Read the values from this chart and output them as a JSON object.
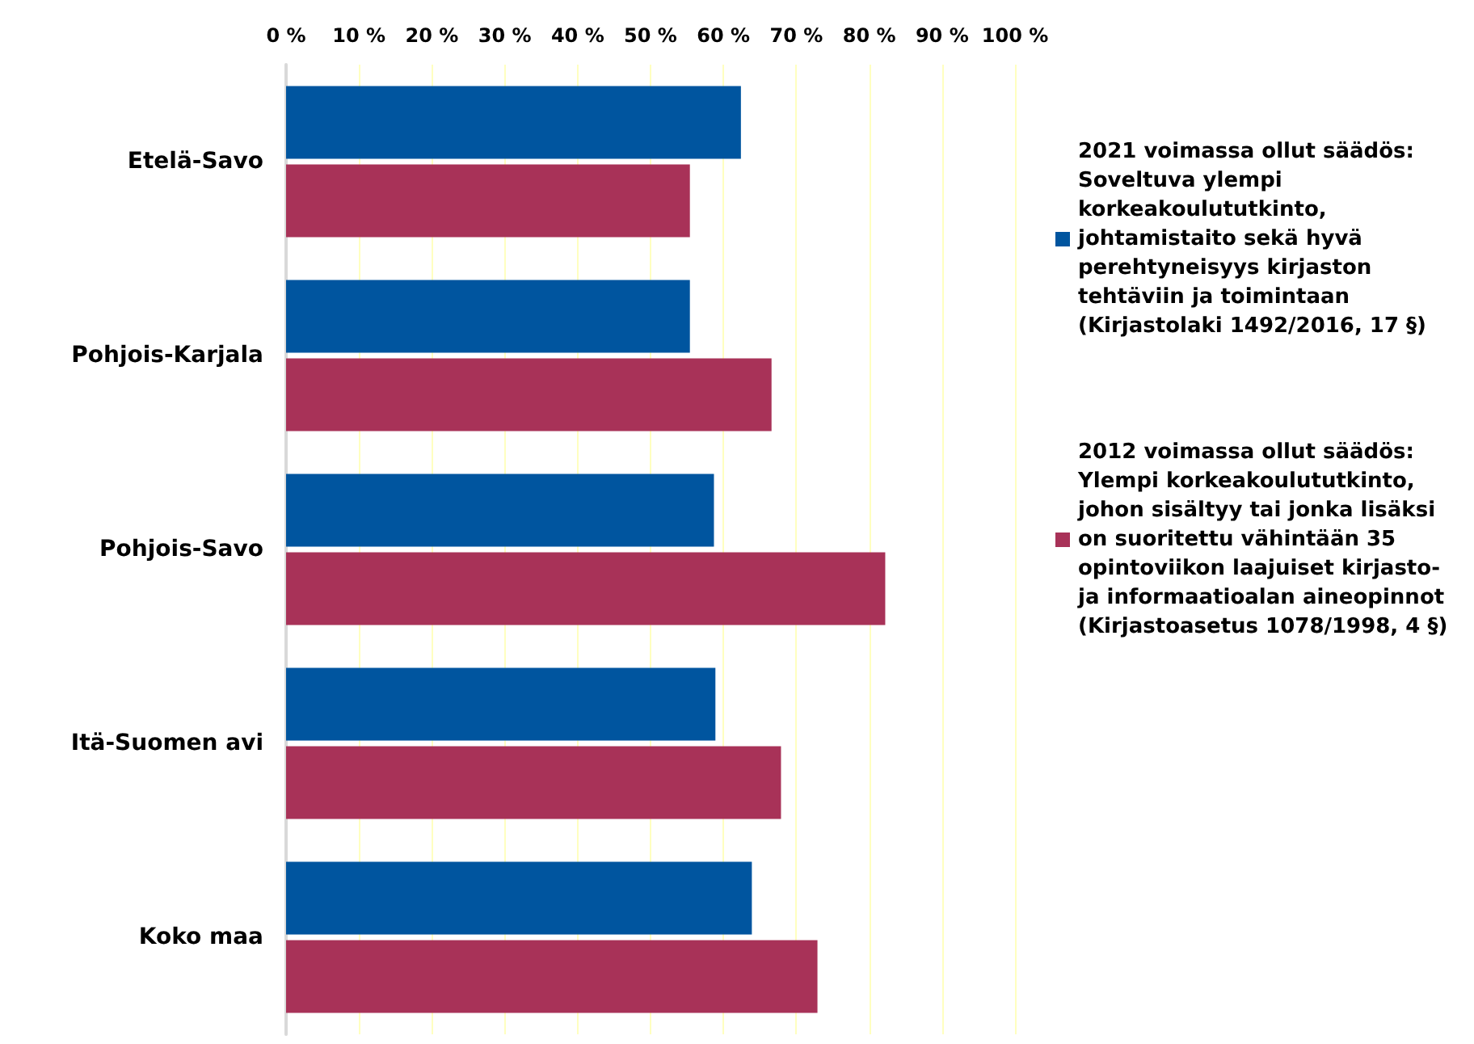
{
  "chart_data": {
    "type": "bar",
    "orientation": "horizontal",
    "categories": [
      "Etelä-Savo",
      "Pohjois-Karjala",
      "Pohjois-Savo",
      "Itä-Suomen avi",
      "Koko maa"
    ],
    "series": [
      {
        "name": "2021 voimassa ollut säädös: Soveltuva ylempi korkeakoulututkinto, johtamistaito sekä hyvä perehtyneisyys kirjaston tehtäviin ja toimintaan (Kirjastolaki 1492/2016, 17 §)",
        "color": "#00559f",
        "values": [
          62.4,
          55.4,
          58.7,
          58.9,
          63.9
        ]
      },
      {
        "name": "2012 voimassa ollut säädös: Ylempi korkeakoulututkinto, johon sisältyy tai jonka lisäksi on suoritettu vähintään 35 opintoviikon laajuiset kirjasto- ja informaatioalan aineopinnot (Kirjastoasetus 1078/1998, 4 §)",
        "color": "#a83258",
        "values": [
          55.4,
          66.6,
          82.2,
          67.9,
          72.9
        ]
      }
    ],
    "xlim": [
      0,
      100
    ],
    "xticks": [
      {
        "value": 0,
        "label": "0 %"
      },
      {
        "value": 10,
        "label": "10 %"
      },
      {
        "value": 20,
        "label": "20 %"
      },
      {
        "value": 30,
        "label": "30 %"
      },
      {
        "value": 40,
        "label": "40 %"
      },
      {
        "value": 50,
        "label": "50 %"
      },
      {
        "value": 60,
        "label": "60 %"
      },
      {
        "value": 70,
        "label": "70 %"
      },
      {
        "value": 80,
        "label": "80 %"
      },
      {
        "value": 90,
        "label": "90 %"
      },
      {
        "value": 100,
        "label": "100 %"
      }
    ],
    "grid": "x",
    "legend": "right"
  }
}
